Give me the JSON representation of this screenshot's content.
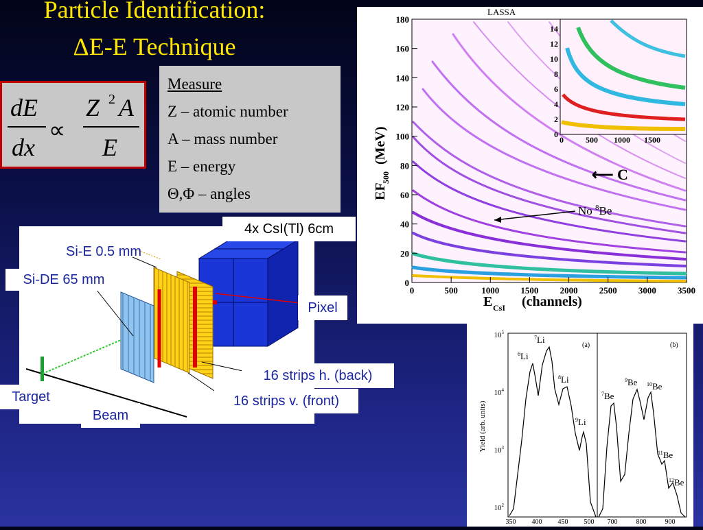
{
  "title": {
    "line1": "Particle Identification:",
    "line2": "ΔE-E Technique"
  },
  "formula": {
    "lhs_num": "dE",
    "lhs_den": "dx",
    "prop": "∝",
    "rhs_num_z": "Z",
    "rhs_num_exp": "2",
    "rhs_num_a": "A",
    "rhs_den": "E"
  },
  "measure": {
    "heading": "Measure",
    "items": [
      "Z – atomic number",
      "A – mass number",
      "E – energy",
      "Θ,Φ – angles"
    ]
  },
  "detector": {
    "csi_label": "4x CsI(Tl)  6cm",
    "si_e": "Si-E 0.5 mm",
    "si_de": "Si-DE 65 mm",
    "pixel": "Pixel",
    "strips_back": "16 strips h. (back)",
    "strips_front": "16 strips v. (front)",
    "target": "Target",
    "beam": "Beam"
  },
  "main_plot": {
    "label": "LASSA",
    "ylabel_pre": "EF",
    "ylabel_sub": "500",
    "ylabel_post": "(MeV)",
    "xlabel_pre": "E",
    "xlabel_sub": "CsI",
    "xlabel_post": "(channels)",
    "arrow_c": "⟵ C",
    "no8be_pre": "No ",
    "no8be_sup": "8",
    "no8be_post": "Be",
    "yticks": [
      "0",
      "20",
      "40",
      "60",
      "80",
      "100",
      "120",
      "140",
      "160",
      "180"
    ],
    "xticks": [
      "0",
      "500",
      "1000",
      "1500",
      "2000",
      "2500",
      "3000",
      "3500"
    ],
    "inset_yticks": [
      "0",
      "2",
      "4",
      "6",
      "8",
      "10",
      "12",
      "14"
    ],
    "inset_xticks": [
      "0",
      "500",
      "1000",
      "1500"
    ]
  },
  "yield_plot": {
    "ylabel": "Yield (arb. units)",
    "panel_a": "(a)",
    "panel_b": "(b)",
    "yticks": [
      {
        "base": "10",
        "exp": "5"
      },
      {
        "base": "10",
        "exp": "4"
      },
      {
        "base": "10",
        "exp": "3"
      },
      {
        "base": "10",
        "exp": "2"
      }
    ],
    "xticks_a": [
      "350",
      "400",
      "450",
      "500"
    ],
    "xticks_b": [
      "700",
      "800",
      "900"
    ],
    "peaks": [
      {
        "m": "6",
        "el": "Li"
      },
      {
        "m": "7",
        "el": "Li"
      },
      {
        "m": "8",
        "el": "Li"
      },
      {
        "m": "9",
        "el": "Li"
      },
      {
        "m": "7",
        "el": "Be"
      },
      {
        "m": "9",
        "el": "Be"
      },
      {
        "m": "10",
        "el": "Be"
      },
      {
        "m": "11",
        "el": "Be"
      },
      {
        "m": "12",
        "el": "Be"
      }
    ]
  },
  "colors": {
    "title": "#ffe600",
    "formula_border": "#c00000",
    "label_text": "#1a27a0"
  }
}
